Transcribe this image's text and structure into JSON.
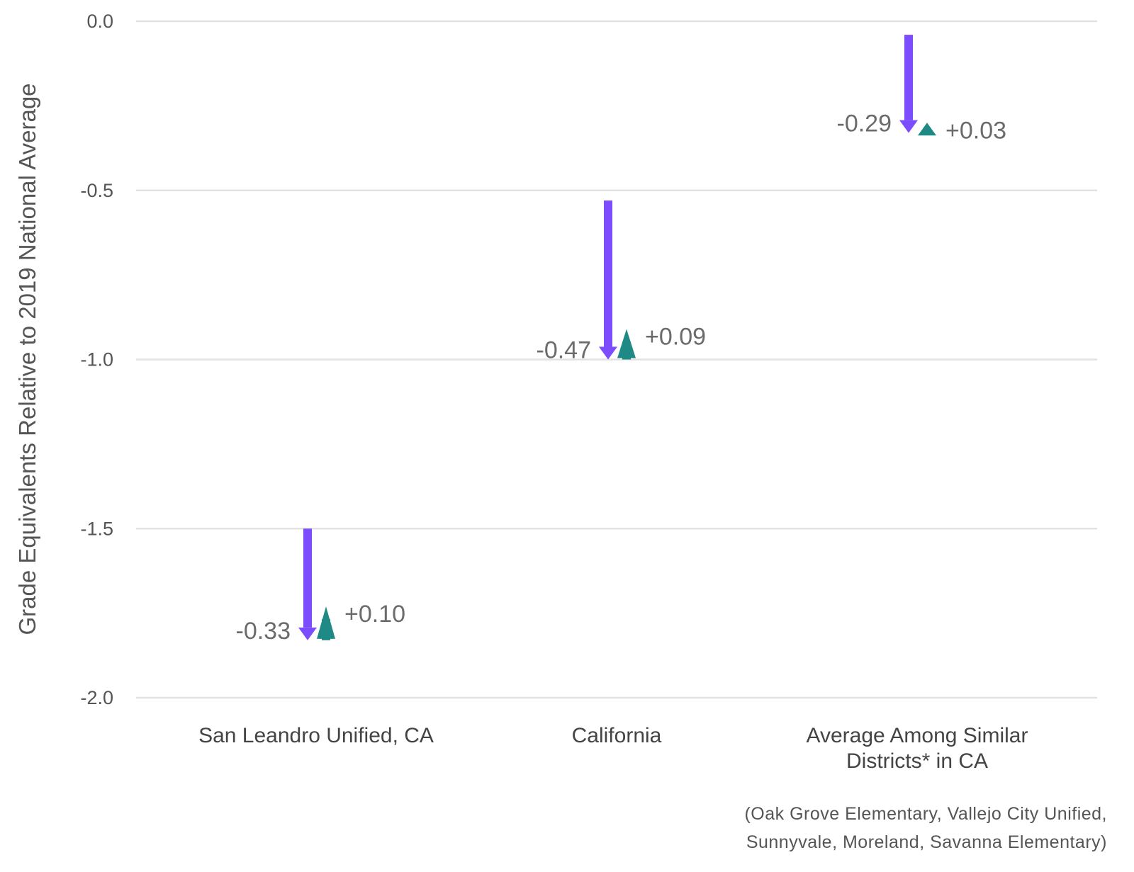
{
  "chart_data": {
    "type": "arrow",
    "ylabel": "Grade Equivalents Relative to 2019 National Average",
    "ylim": [
      -2.0,
      0.0
    ],
    "yticks": [
      0.0,
      -0.5,
      -1.0,
      -1.5,
      -2.0
    ],
    "ytick_labels": [
      "0.0",
      "-0.5",
      "-1.0",
      "-1.5",
      "-2.0"
    ],
    "grid": true,
    "colors": {
      "decline": "#7c4dff",
      "recovery": "#1f8a85",
      "grid": "#e2e2e2"
    },
    "categories": [
      {
        "label_lines": [
          "San Leandro Unified, CA"
        ],
        "start": -1.5,
        "decline": -0.33,
        "recovery": 0.1,
        "decline_label": "-0.33",
        "recovery_label": "+0.10"
      },
      {
        "label_lines": [
          "California"
        ],
        "start": -0.53,
        "decline": -0.47,
        "recovery": 0.09,
        "decline_label": "-0.47",
        "recovery_label": "+0.09"
      },
      {
        "label_lines": [
          "Average Among Similar",
          "Districts* in CA"
        ],
        "start": -0.04,
        "decline": -0.29,
        "recovery": 0.03,
        "decline_label": "-0.29",
        "recovery_label": "+0.03"
      }
    ],
    "footnote_lines": [
      "(Oak Grove Elementary, Vallejo City Unified,",
      "Sunnyvale, Moreland, Savanna Elementary)"
    ]
  }
}
